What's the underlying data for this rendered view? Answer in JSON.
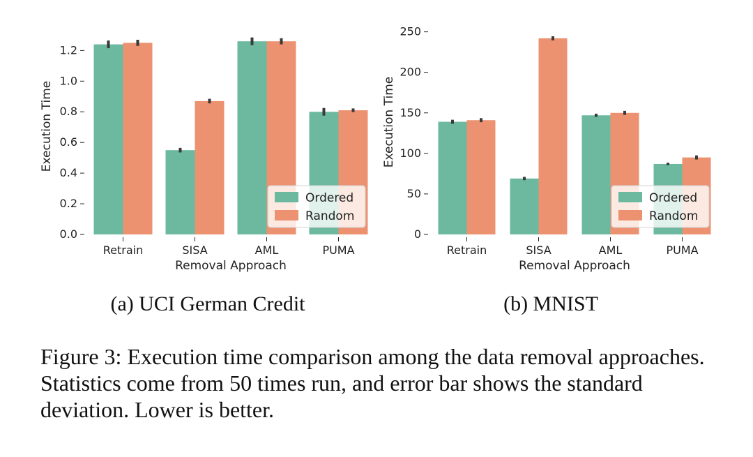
{
  "chart_data": [
    {
      "type": "bar",
      "title": "",
      "xlabel": "Removal Approach",
      "ylabel": "Execution Time",
      "categories": [
        "Retrain",
        "SISA",
        "AML",
        "PUMA"
      ],
      "ylim": [
        0,
        1.32
      ],
      "yticks": [
        0.0,
        0.2,
        0.4,
        0.6,
        0.8,
        1.0,
        1.2
      ],
      "ytick_labels": [
        "0.0",
        "0.2",
        "0.4",
        "0.6",
        "0.8",
        "1.0",
        "1.2"
      ],
      "series": [
        {
          "name": "Ordered",
          "values": [
            1.24,
            0.55,
            1.26,
            0.8
          ],
          "errors": [
            0.025,
            0.015,
            0.025,
            0.025
          ]
        },
        {
          "name": "Random",
          "values": [
            1.25,
            0.87,
            1.26,
            0.81
          ],
          "errors": [
            0.02,
            0.015,
            0.02,
            0.012
          ]
        }
      ],
      "legend": "lower-right",
      "grid": false,
      "subcaption": "(a) UCI German Credit"
    },
    {
      "type": "bar",
      "title": "",
      "xlabel": "Removal Approach",
      "ylabel": "Execution Time",
      "categories": [
        "Retrain",
        "SISA",
        "AML",
        "PUMA"
      ],
      "ylim": [
        0,
        260
      ],
      "yticks": [
        0,
        50,
        100,
        150,
        200,
        250
      ],
      "ytick_labels": [
        "0",
        "50",
        "100",
        "150",
        "200",
        "250"
      ],
      "series": [
        {
          "name": "Ordered",
          "values": [
            139,
            69,
            147,
            87
          ],
          "errors": [
            2.5,
            2,
            2,
            1.5
          ]
        },
        {
          "name": "Random",
          "values": [
            141,
            242,
            150,
            95
          ],
          "errors": [
            2.5,
            2.5,
            2.5,
            2.5
          ]
        }
      ],
      "legend": "lower-right",
      "grid": false,
      "subcaption": "(b) MNIST"
    }
  ],
  "colors": {
    "ordered": "#6cb9a0",
    "random": "#ec9271",
    "errorbar": "#3a3a3a"
  },
  "caption": "Figure 3: Execution time comparison among the data removal approaches. Statistics come from 50 times run, and error bar shows the standard deviation. Lower is better."
}
